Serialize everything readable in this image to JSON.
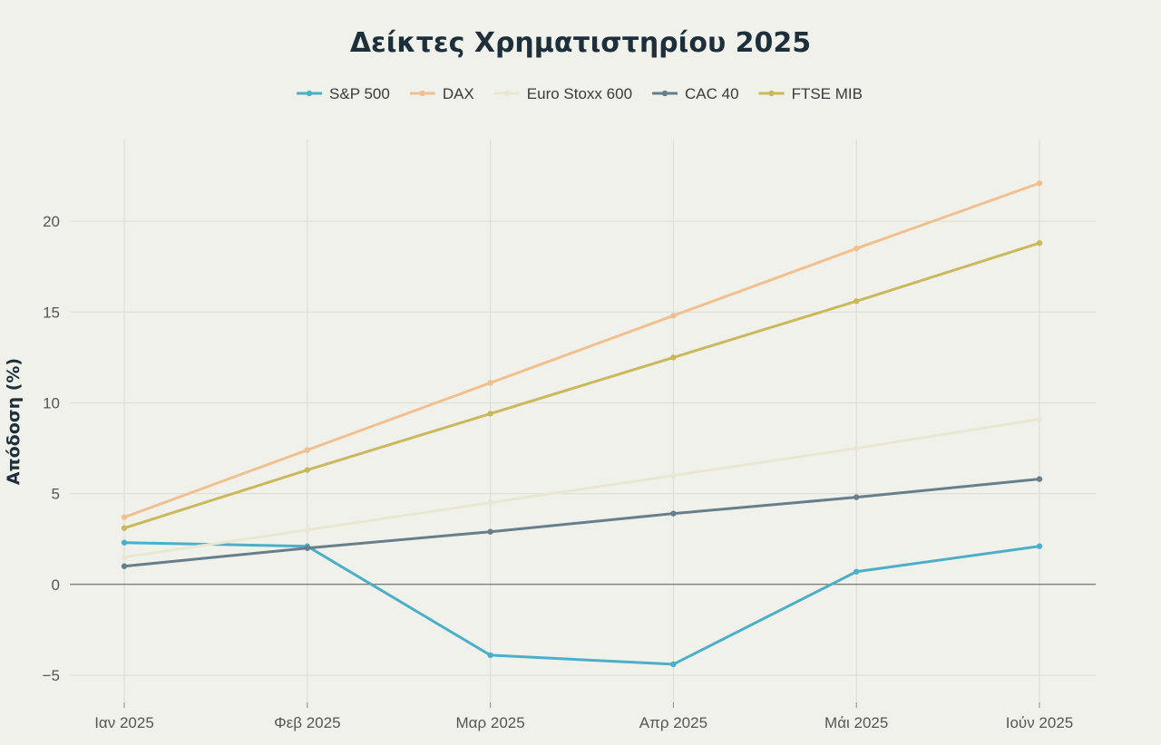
{
  "chart_data": {
    "type": "line",
    "title": "Δείκτες Χρηματιστηρίου 2025",
    "xlabel": "",
    "ylabel": "Απόδοση (%)",
    "categories": [
      "Ιαν 2025",
      "Φεβ 2025",
      "Μαρ 2025",
      "Απρ 2025",
      "Μάι 2025",
      "Ιούν 2025"
    ],
    "ylim": [
      -6.5,
      24.5
    ],
    "yticks": [
      -5,
      0,
      5,
      10,
      15,
      20
    ],
    "ytick_labels": [
      "−5",
      "0",
      "5",
      "10",
      "15",
      "20"
    ],
    "grid": true,
    "legend_position": "top-center",
    "series": [
      {
        "name": "S&P 500",
        "color": "#4bafc7",
        "values": [
          2.3,
          2.1,
          -3.9,
          -4.4,
          0.7,
          2.1
        ]
      },
      {
        "name": "DAX",
        "color": "#f1c08e",
        "values": [
          3.7,
          7.4,
          11.1,
          14.8,
          18.5,
          22.1
        ]
      },
      {
        "name": "Euro Stoxx 600",
        "color": "#e8e8d2",
        "values": [
          1.5,
          3.0,
          4.5,
          6.0,
          7.5,
          9.1
        ]
      },
      {
        "name": "CAC 40",
        "color": "#667f8a",
        "values": [
          1.0,
          2.0,
          2.9,
          3.9,
          4.8,
          5.8
        ]
      },
      {
        "name": "FTSE MIB",
        "color": "#c9b95c",
        "values": [
          3.1,
          6.3,
          9.4,
          12.5,
          15.6,
          18.8
        ]
      }
    ]
  }
}
